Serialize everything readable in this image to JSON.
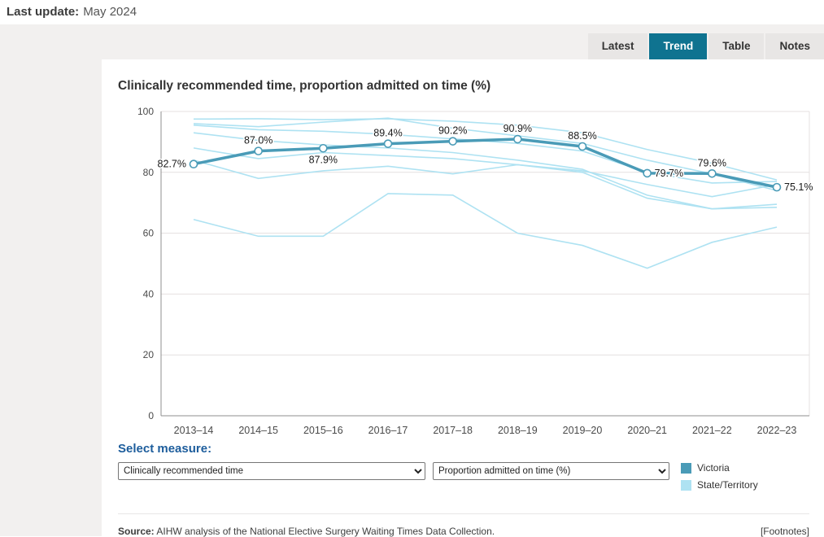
{
  "header": {
    "last_update_label": "Last update:",
    "last_update_value": "May 2024"
  },
  "tabs": [
    {
      "label": "Latest",
      "active": false
    },
    {
      "label": "Trend",
      "active": true
    },
    {
      "label": "Table",
      "active": false
    },
    {
      "label": "Notes",
      "active": false
    }
  ],
  "chart_data": {
    "type": "line",
    "title": "Clinically recommended time, proportion admitted on time (%)",
    "categories": [
      "2013–14",
      "2014–15",
      "2015–16",
      "2016–17",
      "2017–18",
      "2018–19",
      "2019–20",
      "2020–21",
      "2021–22",
      "2022–23"
    ],
    "ylim": [
      0,
      100
    ],
    "yticks": [
      0,
      20,
      40,
      60,
      80,
      100
    ],
    "grid": true,
    "series": [
      {
        "name": "Victoria",
        "color": "#4a9bb7",
        "emphasis": true,
        "values": [
          82.7,
          87.0,
          87.9,
          89.4,
          90.2,
          90.9,
          88.5,
          79.7,
          79.6,
          75.1
        ],
        "labels": [
          "82.7%",
          "87.0%",
          "87.9%",
          "89.4%",
          "90.2%",
          "90.9%",
          "88.5%",
          "79.7%",
          "79.6%",
          "75.1%"
        ],
        "label_pos": [
          "left",
          "top",
          "bottom",
          "top",
          "top",
          "top",
          "top",
          "right",
          "top",
          "right"
        ]
      },
      {
        "name": "State/Territory",
        "color": "#aee2f2",
        "emphasis": false,
        "values": [
          97.5,
          97.6,
          97.3,
          97.6,
          96.8,
          95.5,
          93.0,
          87.5,
          83.0,
          77.5
        ]
      },
      {
        "name": "State/Territory",
        "color": "#aee2f2",
        "emphasis": false,
        "values": [
          95.5,
          94.0,
          93.5,
          92.5,
          91.0,
          89.5,
          87.0,
          80.0,
          76.5,
          77.0
        ]
      },
      {
        "name": "State/Territory",
        "color": "#aee2f2",
        "emphasis": false,
        "values": [
          96.0,
          95.0,
          96.5,
          97.8,
          94.5,
          92.0,
          89.5,
          84.0,
          79.5,
          74.0
        ]
      },
      {
        "name": "State/Territory",
        "color": "#aee2f2",
        "emphasis": false,
        "values": [
          93.0,
          90.5,
          89.0,
          88.0,
          86.5,
          84.0,
          81.0,
          72.5,
          68.0,
          68.5
        ]
      },
      {
        "name": "State/Territory",
        "color": "#aee2f2",
        "emphasis": false,
        "values": [
          88.0,
          84.5,
          86.5,
          85.5,
          84.5,
          82.5,
          80.5,
          76.0,
          72.0,
          76.0
        ]
      },
      {
        "name": "State/Territory",
        "color": "#aee2f2",
        "emphasis": false,
        "values": [
          84.0,
          78.0,
          80.5,
          82.0,
          79.5,
          82.5,
          80.0,
          71.5,
          68.0,
          69.5
        ]
      },
      {
        "name": "State/Territory",
        "color": "#aee2f2",
        "emphasis": false,
        "values": [
          64.5,
          59.0,
          59.0,
          73.0,
          72.5,
          60.0,
          56.0,
          48.5,
          57.0,
          62.0
        ]
      }
    ],
    "legend": [
      {
        "label": "Victoria",
        "color": "#4a9bb7"
      },
      {
        "label": "State/Territory",
        "color": "#aee2f2"
      }
    ],
    "legend_position": "bottom-right"
  },
  "controls": {
    "select_measure_label": "Select measure:",
    "measure_dropdown": "Clinically recommended time",
    "indicator_dropdown": "Proportion admitted on time (%)"
  },
  "footer": {
    "source_label": "Source:",
    "source_text": "AIHW analysis of the National Elective Surgery Waiting Times Data Collection.",
    "footnotes": "[Footnotes]"
  },
  "colors": {
    "active_tab": "#0f7390",
    "victoria_line": "#4a9bb7",
    "state_territory_line": "#aee2f2",
    "measure_label_blue": "#1d5d9c"
  }
}
